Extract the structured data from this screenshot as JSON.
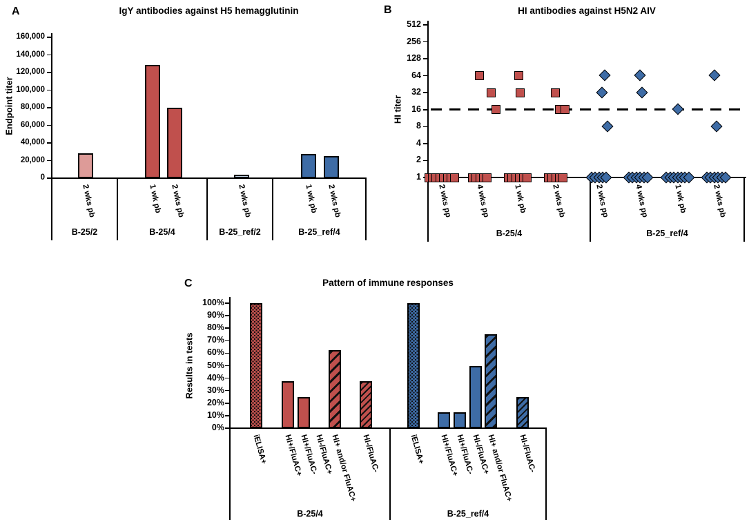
{
  "panels": {
    "a": {
      "letter": "A",
      "title": "IgY antibodies against H5 hemagglutinin",
      "ylabel": "Endpoint titer"
    },
    "b": {
      "letter": "B",
      "title": "HI antibodies against H5N2 AIV",
      "ylabel": "HI titer"
    },
    "c": {
      "letter": "C",
      "title": "Pattern of immune responses",
      "ylabel": "Results in tests"
    }
  },
  "chart_data": [
    {
      "panel": "A",
      "type": "bar",
      "title": "IgY antibodies against H5 hemagglutinin",
      "ylabel": "Endpoint titer",
      "ylim": [
        0,
        160000
      ],
      "ytick_values": [
        0,
        20000,
        40000,
        60000,
        80000,
        100000,
        120000,
        140000,
        160000
      ],
      "ytick_labels": [
        "0",
        "20,000",
        "40,000",
        "60,000",
        "80,000",
        "100,000",
        "120,000",
        "140,000",
        "160,000"
      ],
      "grid": false,
      "groups": [
        {
          "label": "B-25/2",
          "color": "#DD9B98",
          "bars": [
            {
              "label": "2 wks pb",
              "value": 28500
            }
          ]
        },
        {
          "label": "B-25/4",
          "color": "#C0504D",
          "bars": [
            {
              "label": "1 wk pb",
              "value": 129000
            },
            {
              "label": "2 wks pb",
              "value": 80000
            }
          ]
        },
        {
          "label": "B-25_ref/2",
          "color": "#C2D2E4",
          "bars": [
            {
              "label": "2 wks pb",
              "value": 3900
            }
          ]
        },
        {
          "label": "B-25_ref/4",
          "color": "#3E6CA6",
          "bars": [
            {
              "label": "1 wk pb",
              "value": 27500
            },
            {
              "label": "2 wks pb",
              "value": 25000
            }
          ]
        }
      ]
    },
    {
      "panel": "B",
      "type": "scatter",
      "title": "HI antibodies against H5N2 AIV",
      "ylabel": "HI titer",
      "yscale": "log2",
      "ytick_values": [
        1,
        2,
        4,
        8,
        16,
        32,
        64,
        128,
        256,
        512
      ],
      "ytick_labels": [
        "1",
        "2",
        "4",
        "8",
        "16",
        "32",
        "64",
        "128",
        "256",
        "512"
      ],
      "cutoff_line": 16,
      "cutoff_style": "dashed",
      "groups": [
        {
          "label": "B-25/4",
          "marker": "square",
          "color": "#C0504D",
          "timepoints": [
            {
              "label": "2 wks pp",
              "values": [
                1,
                1,
                1,
                1,
                1,
                1,
                1,
                1
              ]
            },
            {
              "label": "4 wks pp",
              "values": [
                64,
                32,
                16,
                1,
                1,
                1,
                1,
                1
              ]
            },
            {
              "label": "1 wk pb",
              "values": [
                64,
                32,
                1,
                1,
                1,
                1,
                1,
                1
              ]
            },
            {
              "label": "2 wks pb",
              "values": [
                32,
                16,
                16,
                1,
                1,
                1,
                1,
                1
              ]
            }
          ]
        },
        {
          "label": "B-25_ref/4",
          "marker": "diamond",
          "color": "#3E6CA6",
          "timepoints": [
            {
              "label": "2 wks pp",
              "values": [
                64,
                32,
                8,
                1,
                1,
                1,
                1,
                1
              ]
            },
            {
              "label": "4 wks pp",
              "values": [
                64,
                32,
                1,
                1,
                1,
                1,
                1,
                1
              ]
            },
            {
              "label": "1 wk pb",
              "values": [
                16,
                1,
                1,
                1,
                1,
                1,
                1,
                1
              ]
            },
            {
              "label": "2 wks pb",
              "values": [
                64,
                8,
                1,
                1,
                1,
                1,
                1,
                1
              ]
            }
          ]
        }
      ]
    },
    {
      "panel": "C",
      "type": "bar",
      "title": "Pattern of immune responses",
      "ylabel": "Results in tests",
      "ylim": [
        0,
        100
      ],
      "ytick_values": [
        0,
        10,
        20,
        30,
        40,
        50,
        60,
        70,
        80,
        90,
        100
      ],
      "ytick_labels": [
        "0%",
        "10%",
        "20%",
        "30%",
        "40%",
        "50%",
        "60%",
        "70%",
        "80%",
        "90%",
        "100%"
      ],
      "categories": [
        "iELISA+",
        "HI+/FluAC+",
        "HI+/FluAC-",
        "HI-/FluAC+",
        "HI+ and/or FluAC+",
        "HI-/FluAC-"
      ],
      "patterns": [
        "dots",
        "solid",
        "solid",
        "solid",
        "stripes-wide",
        "stripes-thin"
      ],
      "groups": [
        {
          "label": "B-25/4",
          "color": "#C0504D",
          "values": [
            100,
            37.5,
            25,
            0,
            62.5,
            37.5
          ]
        },
        {
          "label": "B-25_ref/4",
          "color": "#3E6CA6",
          "values": [
            100,
            12.5,
            12.5,
            50,
            75,
            25
          ]
        }
      ]
    }
  ]
}
